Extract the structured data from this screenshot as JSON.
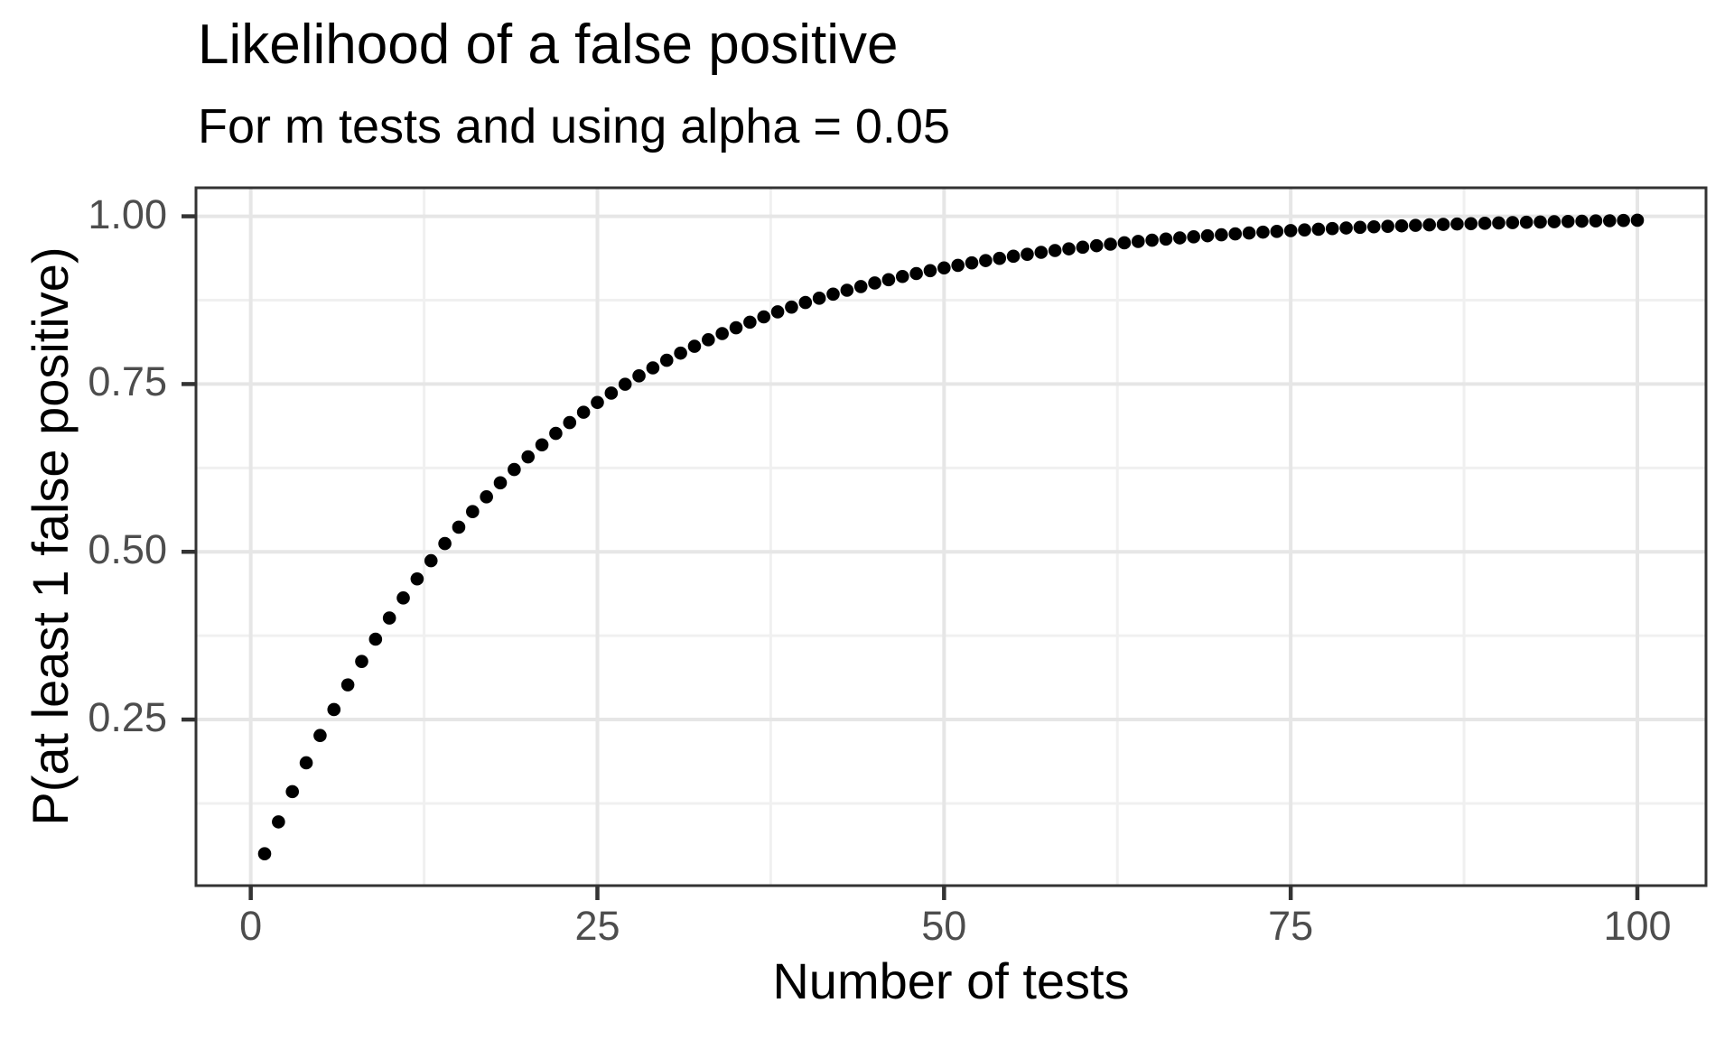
{
  "chart_data": {
    "type": "scatter",
    "title": "Likelihood of a false positive",
    "subtitle": "For m tests and using alpha = 0.05",
    "xlabel": "Number of tests",
    "ylabel": "P(at least 1 false positive)",
    "grid": "on",
    "legend": "none",
    "xlim": [
      -3.95,
      104.95
    ],
    "ylim": [
      0.0025,
      1.0425
    ],
    "x_major_ticks": [
      0,
      25,
      50,
      75,
      100
    ],
    "x_tick_labels": [
      "0",
      "25",
      "50",
      "75",
      "100"
    ],
    "y_major_ticks": [
      0.25,
      0.5,
      0.75,
      1.0
    ],
    "y_tick_labels": [
      "0.25",
      "0.50",
      "0.75",
      "1.00"
    ],
    "x_minor_gridlines": [
      12.5,
      37.5,
      62.5,
      87.5
    ],
    "y_minor_gridlines": [
      0.125,
      0.375,
      0.625,
      0.875
    ],
    "x": [
      1,
      2,
      3,
      4,
      5,
      6,
      7,
      8,
      9,
      10,
      11,
      12,
      13,
      14,
      15,
      16,
      17,
      18,
      19,
      20,
      21,
      22,
      23,
      24,
      25,
      26,
      27,
      28,
      29,
      30,
      31,
      32,
      33,
      34,
      35,
      36,
      37,
      38,
      39,
      40,
      41,
      42,
      43,
      44,
      45,
      46,
      47,
      48,
      49,
      50,
      51,
      52,
      53,
      54,
      55,
      56,
      57,
      58,
      59,
      60,
      61,
      62,
      63,
      64,
      65,
      66,
      67,
      68,
      69,
      70,
      71,
      72,
      73,
      74,
      75,
      76,
      77,
      78,
      79,
      80,
      81,
      82,
      83,
      84,
      85,
      86,
      87,
      88,
      89,
      90,
      91,
      92,
      93,
      94,
      95,
      96,
      97,
      98,
      99,
      100
    ],
    "y": [
      0.05,
      0.0975,
      0.1426,
      0.1855,
      0.2262,
      0.2649,
      0.3017,
      0.3366,
      0.3698,
      0.4013,
      0.4312,
      0.4596,
      0.4867,
      0.5123,
      0.5367,
      0.5599,
      0.5819,
      0.6028,
      0.6226,
      0.6415,
      0.6594,
      0.6765,
      0.6926,
      0.708,
      0.7226,
      0.7365,
      0.7497,
      0.7622,
      0.7741,
      0.7854,
      0.7961,
      0.8063,
      0.816,
      0.8252,
      0.8339,
      0.8422,
      0.8501,
      0.8576,
      0.8647,
      0.8715,
      0.8779,
      0.884,
      0.8898,
      0.8953,
      0.9006,
      0.9055,
      0.9103,
      0.9147,
      0.919,
      0.9231,
      0.9269,
      0.9306,
      0.934,
      0.9373,
      0.9405,
      0.9434,
      0.9463,
      0.949,
      0.9515,
      0.9539,
      0.9562,
      0.9584,
      0.9605,
      0.9625,
      0.9644,
      0.9661,
      0.9678,
      0.9694,
      0.971,
      0.9724,
      0.9738,
      0.9751,
      0.9764,
      0.9775,
      0.9787,
      0.9797,
      0.9807,
      0.9817,
      0.9826,
      0.9835,
      0.9843,
      0.9851,
      0.9858,
      0.9865,
      0.9872,
      0.9879,
      0.9885,
      0.989,
      0.9896,
      0.9901,
      0.9906,
      0.9911,
      0.9915,
      0.9919,
      0.9923,
      0.9927,
      0.9931,
      0.9934,
      0.9938,
      0.9941
    ],
    "colors": {
      "point": "#000000",
      "grid_major": "#e6e6e6",
      "grid_minor": "#f0f0f0",
      "panel_border": "#333333",
      "tick_mark": "#333333",
      "axis_text": "#4d4d4d",
      "title_text": "#000000",
      "background": "#ffffff"
    }
  }
}
